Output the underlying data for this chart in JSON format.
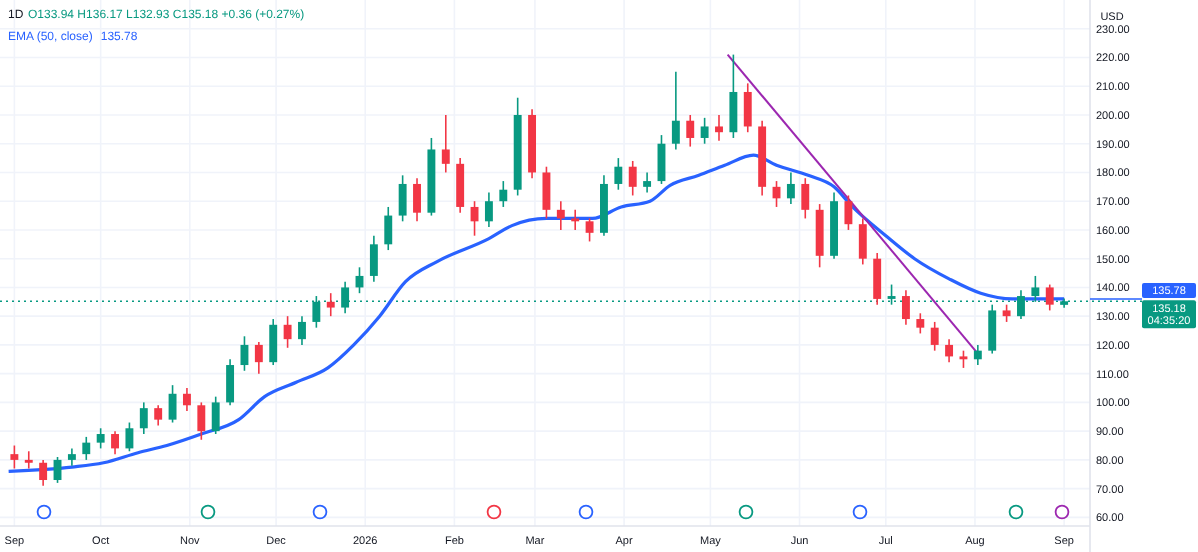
{
  "chart_data": {
    "type": "candlestick",
    "title": "1D",
    "annotations": [
      "O133.94 H136.17 L132.93 C135.18 +0.36 (+0.27%)",
      "USD",
      "135.78",
      "04:35:20"
    ],
    "x": [
      "2025-09-01",
      "2025-09-06",
      "2025-09-11",
      "2025-09-16",
      "2025-09-21",
      "2025-09-26",
      "2025-10-01",
      "2025-10-06",
      "2025-10-11",
      "2025-10-16",
      "2025-10-21",
      "2025-10-26",
      "2025-10-31",
      "2025-11-05",
      "2025-11-10",
      "2025-11-15",
      "2025-11-20",
      "2025-11-25",
      "2025-11-30",
      "2025-12-05",
      "2025-12-10",
      "2025-12-15",
      "2025-12-20",
      "2025-12-25",
      "2025-12-30",
      "2026-01-04",
      "2026-01-09",
      "2026-01-14",
      "2026-01-19",
      "2026-01-24",
      "2026-01-29",
      "2026-02-03",
      "2026-02-08",
      "2026-02-13",
      "2026-02-18",
      "2026-02-23",
      "2026-02-28",
      "2026-03-05",
      "2026-03-10",
      "2026-03-15",
      "2026-03-20",
      "2026-03-25",
      "2026-03-30",
      "2026-04-04",
      "2026-04-09",
      "2026-04-14",
      "2026-04-19",
      "2026-04-24",
      "2026-04-29",
      "2026-05-04",
      "2026-05-09",
      "2026-05-14",
      "2026-05-19",
      "2026-05-24",
      "2026-05-29",
      "2026-06-03",
      "2026-06-08",
      "2026-06-13",
      "2026-06-18",
      "2026-06-23",
      "2026-06-28",
      "2026-07-03",
      "2026-07-08",
      "2026-07-13",
      "2026-07-18",
      "2026-07-23",
      "2026-07-28",
      "2026-08-02",
      "2026-08-07",
      "2026-08-12",
      "2026-08-17",
      "2026-08-22",
      "2026-08-27",
      "2026-09-01"
    ],
    "ohlc": [
      [
        82,
        85,
        77,
        80
      ],
      [
        80,
        83,
        77,
        79
      ],
      [
        79,
        80,
        71,
        73
      ],
      [
        73,
        81,
        72,
        80
      ],
      [
        80,
        84,
        78,
        82
      ],
      [
        82,
        88,
        80,
        86
      ],
      [
        86,
        91,
        84,
        89
      ],
      [
        89,
        90,
        82,
        84
      ],
      [
        84,
        93,
        83,
        91
      ],
      [
        91,
        100,
        89,
        98
      ],
      [
        98,
        99,
        92,
        94
      ],
      [
        94,
        106,
        93,
        103
      ],
      [
        103,
        105,
        97,
        99
      ],
      [
        99,
        100,
        87,
        90
      ],
      [
        90,
        102,
        89,
        100
      ],
      [
        100,
        115,
        99,
        113
      ],
      [
        113,
        123,
        111,
        120
      ],
      [
        120,
        121,
        110,
        114
      ],
      [
        114,
        129,
        113,
        127
      ],
      [
        127,
        130,
        119,
        122
      ],
      [
        122,
        130,
        120,
        128
      ],
      [
        128,
        137,
        126,
        135
      ],
      [
        135,
        138,
        130,
        133
      ],
      [
        133,
        142,
        131,
        140
      ],
      [
        140,
        147,
        138,
        144
      ],
      [
        144,
        158,
        142,
        155
      ],
      [
        155,
        168,
        153,
        165
      ],
      [
        165,
        179,
        163,
        176
      ],
      [
        176,
        178,
        163,
        166
      ],
      [
        166,
        192,
        165,
        188
      ],
      [
        188,
        200,
        180,
        183
      ],
      [
        183,
        185,
        166,
        168
      ],
      [
        168,
        170,
        158,
        163
      ],
      [
        163,
        173,
        161,
        170
      ],
      [
        170,
        177,
        168,
        174
      ],
      [
        174,
        206,
        172,
        200
      ],
      [
        200,
        202,
        178,
        180
      ],
      [
        180,
        182,
        164,
        167
      ],
      [
        167,
        170,
        160,
        164
      ],
      [
        164,
        167,
        160,
        163
      ],
      [
        163,
        164,
        156,
        159
      ],
      [
        159,
        179,
        158,
        176
      ],
      [
        176,
        185,
        174,
        182
      ],
      [
        182,
        184,
        172,
        175
      ],
      [
        175,
        180,
        173,
        177
      ],
      [
        177,
        193,
        176,
        190
      ],
      [
        190,
        215,
        188,
        198
      ],
      [
        198,
        200,
        189,
        192
      ],
      [
        192,
        199,
        190,
        196
      ],
      [
        196,
        200,
        191,
        194
      ],
      [
        194,
        221,
        192,
        208
      ],
      [
        208,
        211,
        194,
        196
      ],
      [
        196,
        198,
        172,
        175
      ],
      [
        175,
        177,
        168,
        171
      ],
      [
        171,
        180,
        169,
        176
      ],
      [
        176,
        178,
        164,
        167
      ],
      [
        167,
        169,
        147,
        151
      ],
      [
        151,
        173,
        150,
        170
      ],
      [
        170,
        172,
        160,
        162
      ],
      [
        162,
        164,
        148,
        150
      ],
      [
        150,
        152,
        134,
        136
      ],
      [
        136,
        141,
        134,
        137
      ],
      [
        137,
        139,
        127,
        129
      ],
      [
        129,
        131,
        124,
        126
      ],
      [
        126,
        128,
        118,
        120
      ],
      [
        120,
        122,
        114,
        116
      ],
      [
        116,
        118,
        112,
        115
      ],
      [
        115,
        120,
        113,
        118
      ],
      [
        118,
        134,
        117,
        132
      ],
      [
        132,
        134,
        128,
        130
      ],
      [
        130,
        139,
        129,
        137
      ],
      [
        137,
        144,
        135,
        140
      ],
      [
        140,
        141,
        132,
        134
      ],
      [
        133.94,
        136.17,
        132.93,
        135.18
      ]
    ],
    "series": [
      {
        "type": "line",
        "name": "EMA (50, close)",
        "color": "#2962ff",
        "x": [
          "2025-08-30",
          "2025-09-21",
          "2025-10-02",
          "2025-10-14",
          "2025-10-24",
          "2025-11-05",
          "2025-11-18",
          "2025-11-27",
          "2025-12-08",
          "2025-12-19",
          "2025-12-28",
          "2026-01-06",
          "2026-01-15",
          "2026-01-26",
          "2026-02-13",
          "2026-02-21",
          "2026-03-05",
          "2026-03-21",
          "2026-03-31",
          "2026-04-10",
          "2026-04-17",
          "2026-04-27",
          "2026-05-06",
          "2026-05-16",
          "2026-05-24",
          "2026-06-04",
          "2026-06-13",
          "2026-06-19",
          "2026-07-01",
          "2026-07-11",
          "2026-07-23",
          "2026-08-03",
          "2026-08-14",
          "2026-09-01"
        ],
        "values": [
          76,
          77.5,
          79,
          82.5,
          85,
          89,
          94,
          102,
          107,
          112,
          120,
          130,
          142,
          149,
          157,
          161.5,
          164,
          164,
          168,
          170,
          175.5,
          179,
          182.5,
          186,
          182.5,
          179,
          175,
          168.5,
          158,
          150,
          143,
          138,
          136,
          136
        ]
      },
      {
        "type": "line",
        "color": "#9c27b0",
        "x": [
          "2026-05-07",
          "2026-08-02"
        ],
        "values": [
          221,
          117
        ]
      }
    ],
    "xlim": [
      "2025-08-27",
      "2026-09-10"
    ],
    "xticks": [
      {
        "value": "2025-09-01",
        "label": "Sep"
      },
      {
        "value": "2025-10-01",
        "label": "Oct"
      },
      {
        "value": "2025-11-01",
        "label": "Nov"
      },
      {
        "value": "2025-12-01",
        "label": "Dec"
      },
      {
        "value": "2026-01-01",
        "label": "2026"
      },
      {
        "value": "2026-02-01",
        "label": "Feb"
      },
      {
        "value": "2026-03-01",
        "label": "Mar"
      },
      {
        "value": "2026-04-01",
        "label": "Apr"
      },
      {
        "value": "2026-05-01",
        "label": "May"
      },
      {
        "value": "2026-06-01",
        "label": "Jun"
      },
      {
        "value": "2026-07-01",
        "label": "Jul"
      },
      {
        "value": "2026-08-01",
        "label": "Aug"
      },
      {
        "value": "2026-09-01",
        "label": "Sep"
      }
    ],
    "ylim": [
      57,
      240
    ],
    "yticks": [
      {
        "value": 60,
        "label": "60.00"
      },
      {
        "value": 70,
        "label": "70.00"
      },
      {
        "value": 80,
        "label": "80.00"
      },
      {
        "value": 90,
        "label": "90.00"
      },
      {
        "value": 100,
        "label": "100.00"
      },
      {
        "value": 110,
        "label": "110.00"
      },
      {
        "value": 120,
        "label": "120.00"
      },
      {
        "value": 130,
        "label": "130.00"
      },
      {
        "value": 140,
        "label": "140.00"
      },
      {
        "value": 150,
        "label": "150.00"
      },
      {
        "value": 160,
        "label": "160.00"
      },
      {
        "value": 170,
        "label": "170.00"
      },
      {
        "value": 180,
        "label": "180.00"
      },
      {
        "value": 190,
        "label": "190.00"
      },
      {
        "value": 200,
        "label": "200.00"
      },
      {
        "value": 210,
        "label": "210.00"
      },
      {
        "value": 220,
        "label": "220.00"
      },
      {
        "value": 230,
        "label": "230.00"
      }
    ],
    "ref_lines": [
      {
        "axis": "y",
        "value": 135.18,
        "label": "135.18",
        "color": "#089981",
        "line_style": "dotted"
      }
    ],
    "grid": true,
    "legend": "top left"
  }
}
